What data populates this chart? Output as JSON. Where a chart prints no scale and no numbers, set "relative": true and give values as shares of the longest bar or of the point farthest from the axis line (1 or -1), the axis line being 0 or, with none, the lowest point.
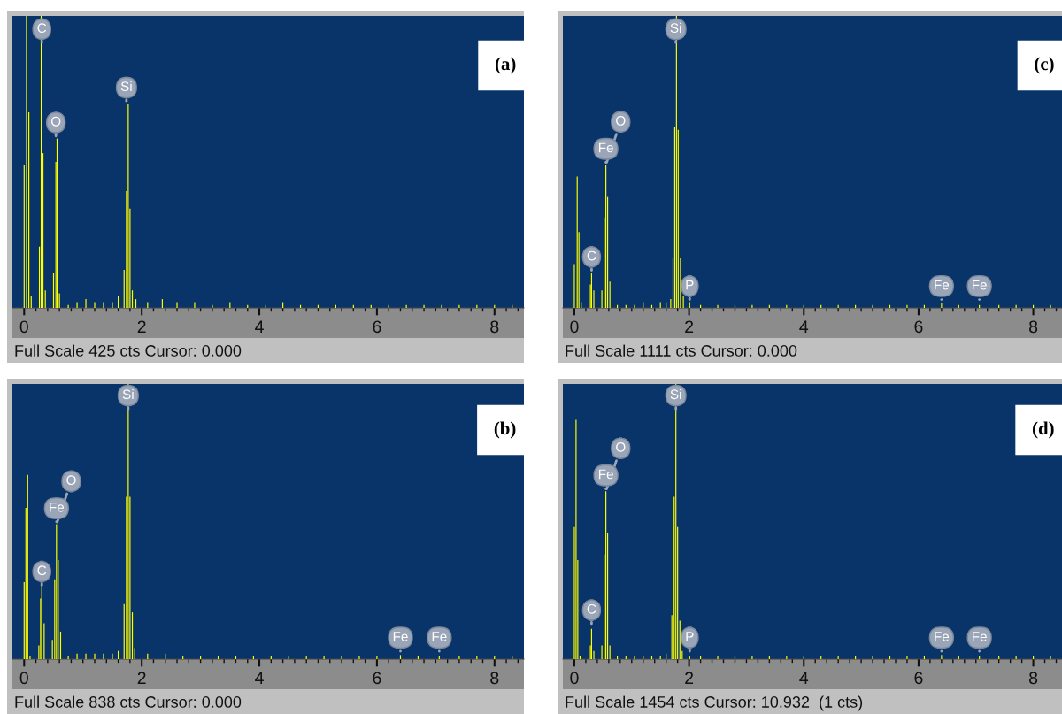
{
  "chart_data": [
    {
      "type": "bar",
      "title": "(a)",
      "relative": true,
      "color": "#ffff00",
      "xlim": [
        -0.2,
        8.5
      ],
      "xticks": [
        0,
        2,
        4,
        6,
        8
      ],
      "x": [
        0.0,
        0.04,
        0.08,
        0.12,
        0.26,
        0.29,
        0.32,
        0.36,
        0.5,
        0.54,
        0.56,
        0.6,
        0.75,
        0.9,
        1.05,
        1.2,
        1.35,
        1.5,
        1.6,
        1.7,
        1.74,
        1.77,
        1.8,
        1.84,
        1.9,
        2.1,
        2.35,
        2.6,
        2.9,
        3.2,
        3.5,
        3.8,
        4.1,
        4.4,
        4.7,
        5.0,
        5.3,
        5.6,
        5.9,
        6.2,
        6.5,
        6.8,
        7.1,
        7.4,
        7.7,
        8.0,
        8.3
      ],
      "values": [
        0.49,
        1.0,
        0.67,
        0.04,
        0.21,
        1.0,
        0.53,
        0.06,
        0.12,
        0.5,
        0.58,
        0.05,
        0.01,
        0.02,
        0.03,
        0.02,
        0.02,
        0.02,
        0.04,
        0.13,
        0.4,
        0.7,
        0.34,
        0.06,
        0.03,
        0.02,
        0.03,
        0.02,
        0.02,
        0.01,
        0.02,
        0.01,
        0.01,
        0.02,
        0.01,
        0.01,
        0.01,
        0.01,
        0.01,
        0.01,
        0.01,
        0.01,
        0.01,
        0.01,
        0.01,
        0.01,
        0.01
      ],
      "annotations": [
        {
          "text": "C",
          "x": 0.3,
          "y": 0.9
        },
        {
          "text": "O",
          "x": 0.54,
          "y": 0.58
        },
        {
          "text": "Si",
          "x": 1.74,
          "y": 0.7
        },
        "Full Scale 425 cts Cursor: 0.000"
      ]
    },
    {
      "type": "bar",
      "title": "(c)",
      "relative": true,
      "color": "#ffff00",
      "xlim": [
        -0.2,
        8.5
      ],
      "xticks": [
        0,
        2,
        4,
        6,
        8
      ],
      "x": [
        0.0,
        0.05,
        0.08,
        0.12,
        0.28,
        0.3,
        0.34,
        0.48,
        0.52,
        0.55,
        0.58,
        0.62,
        0.75,
        0.9,
        1.05,
        1.2,
        1.35,
        1.5,
        1.6,
        1.68,
        1.72,
        1.75,
        1.78,
        1.81,
        1.85,
        1.9,
        2.01,
        2.2,
        2.5,
        2.8,
        3.1,
        3.4,
        3.7,
        4.0,
        4.3,
        4.6,
        4.9,
        5.2,
        5.5,
        5.8,
        6.1,
        6.4,
        6.7,
        7.06,
        7.4,
        7.7,
        8.0,
        8.3
      ],
      "values": [
        0.15,
        0.45,
        0.26,
        0.02,
        0.08,
        0.12,
        0.06,
        0.06,
        0.31,
        0.49,
        0.38,
        0.09,
        0.01,
        0.01,
        0.01,
        0.02,
        0.01,
        0.02,
        0.02,
        0.03,
        0.17,
        0.62,
        1.0,
        0.61,
        0.17,
        0.04,
        0.02,
        0.01,
        0.01,
        0.01,
        0.01,
        0.01,
        0.01,
        0.01,
        0.01,
        0.01,
        0.01,
        0.01,
        0.01,
        0.01,
        0.01,
        0.015,
        0.01,
        0.01,
        0.01,
        0.01,
        0.01,
        0.01
      ],
      "annotations": [
        {
          "text": "Si",
          "x": 1.77,
          "y": 0.9
        },
        {
          "text": "Fe",
          "x": 0.55,
          "y": 0.49
        },
        {
          "text": "O",
          "x": 0.55,
          "y": 0.49
        },
        {
          "text": "C",
          "x": 0.3,
          "y": 0.12
        },
        {
          "text": "P",
          "x": 2.01,
          "y": 0.02
        },
        {
          "text": "Fe",
          "x": 6.4,
          "y": 0.02
        },
        {
          "text": "Fe",
          "x": 7.06,
          "y": 0.02
        },
        "Full Scale 1111 cts Cursor: 0.000"
      ]
    },
    {
      "type": "bar",
      "title": "(b)",
      "relative": true,
      "color": "#ffff00",
      "xlim": [
        -0.2,
        8.5
      ],
      "xticks": [
        0,
        2,
        4,
        6,
        8
      ],
      "x": [
        0.0,
        0.03,
        0.06,
        0.1,
        0.25,
        0.28,
        0.3,
        0.34,
        0.48,
        0.52,
        0.55,
        0.58,
        0.62,
        0.75,
        0.9,
        1.05,
        1.2,
        1.35,
        1.5,
        1.6,
        1.7,
        1.74,
        1.77,
        1.8,
        1.84,
        1.88,
        2.1,
        2.4,
        2.7,
        3.0,
        3.3,
        3.6,
        3.9,
        4.2,
        4.5,
        4.8,
        5.1,
        5.4,
        5.7,
        6.0,
        6.4,
        6.7,
        7.06,
        7.4,
        7.7,
        8.0,
        8.3
      ],
      "values": [
        0.28,
        0.55,
        0.67,
        0.01,
        0.05,
        0.22,
        0.28,
        0.13,
        0.07,
        0.29,
        0.49,
        0.36,
        0.1,
        0.01,
        0.02,
        0.02,
        0.02,
        0.02,
        0.02,
        0.03,
        0.2,
        0.59,
        1.0,
        0.59,
        0.17,
        0.04,
        0.02,
        0.02,
        0.01,
        0.01,
        0.01,
        0.01,
        0.01,
        0.01,
        0.01,
        0.01,
        0.01,
        0.01,
        0.01,
        0.01,
        0.015,
        0.01,
        0.01,
        0.01,
        0.01,
        0.01,
        0.01
      ],
      "annotations": [
        {
          "text": "Si",
          "x": 1.77,
          "y": 0.9
        },
        {
          "text": "Fe",
          "x": 0.55,
          "y": 0.49
        },
        {
          "text": "O",
          "x": 0.55,
          "y": 0.49
        },
        {
          "text": "C",
          "x": 0.3,
          "y": 0.26
        },
        {
          "text": "Fe",
          "x": 6.4,
          "y": 0.02
        },
        {
          "text": "Fe",
          "x": 7.06,
          "y": 0.02
        },
        "Full Scale 838 cts Cursor: 0.000"
      ]
    },
    {
      "type": "bar",
      "title": "(d)",
      "relative": true,
      "color": "#ffff00",
      "xlim": [
        -0.2,
        8.5
      ],
      "xticks": [
        0,
        2,
        4,
        6,
        8
      ],
      "x": [
        0.0,
        0.03,
        0.06,
        0.1,
        0.28,
        0.3,
        0.34,
        0.48,
        0.52,
        0.55,
        0.58,
        0.62,
        0.75,
        0.9,
        1.05,
        1.2,
        1.35,
        1.5,
        1.6,
        1.7,
        1.74,
        1.77,
        1.8,
        1.84,
        1.88,
        2.01,
        2.2,
        2.5,
        2.8,
        3.1,
        3.4,
        3.7,
        4.0,
        4.3,
        4.6,
        4.9,
        5.2,
        5.5,
        5.8,
        6.1,
        6.4,
        6.7,
        7.06,
        7.4,
        7.7,
        8.0,
        8.3
      ],
      "values": [
        0.48,
        0.87,
        0.36,
        0.01,
        0.05,
        0.11,
        0.03,
        0.05,
        0.38,
        0.61,
        0.46,
        0.05,
        0.01,
        0.01,
        0.01,
        0.01,
        0.01,
        0.01,
        0.02,
        0.16,
        0.59,
        1.0,
        0.48,
        0.14,
        0.03,
        0.01,
        0.01,
        0.01,
        0.01,
        0.01,
        0.01,
        0.01,
        0.01,
        0.01,
        0.01,
        0.01,
        0.01,
        0.01,
        0.01,
        0.01,
        0.015,
        0.01,
        0.01,
        0.01,
        0.01,
        0.01,
        0.01
      ],
      "annotations": [
        {
          "text": "Si",
          "x": 1.77,
          "y": 0.9
        },
        {
          "text": "Fe",
          "x": 0.55,
          "y": 0.61
        },
        {
          "text": "O",
          "x": 0.55,
          "y": 0.61
        },
        {
          "text": "C",
          "x": 0.3,
          "y": 0.12
        },
        {
          "text": "P",
          "x": 2.01,
          "y": 0.02
        },
        {
          "text": "Fe",
          "x": 6.4,
          "y": 0.02
        },
        {
          "text": "Fe",
          "x": 7.06,
          "y": 0.02
        },
        "Full Scale 1454 cts Cursor: 10.932  (1 cts)"
      ]
    }
  ]
}
